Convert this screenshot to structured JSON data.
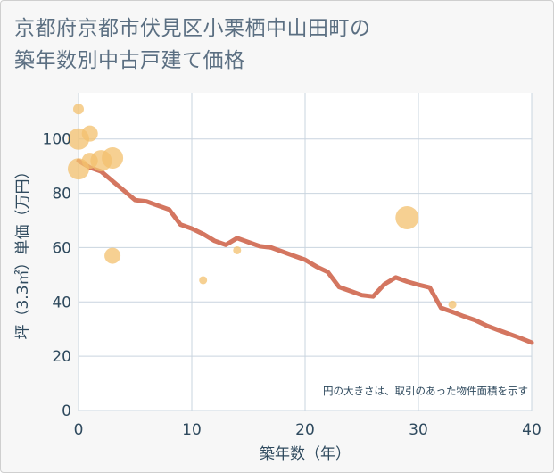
{
  "title_line1": "京都府京都市伏見区小栗栖中山田町の",
  "title_line2": "築年数別中古戸建て価格",
  "chart_data": {
    "type": "scatter",
    "title": "京都府京都市伏見区小栗栖中山田町の築年数別中古戸建て価格",
    "xlabel": "築年数（年）",
    "ylabel": "坪（3.3㎡）単価（万円）",
    "xlim": [
      0,
      40
    ],
    "ylim": [
      0,
      117
    ],
    "x_ticks": [
      0,
      10,
      20,
      30,
      40
    ],
    "y_ticks": [
      0,
      20,
      40,
      60,
      80,
      100
    ],
    "grid": true,
    "annotation": "円の大きさは、取引のあった物件面積を示す",
    "points": [
      {
        "x": 0,
        "y": 111,
        "size": 6
      },
      {
        "x": 0,
        "y": 100,
        "size": 12
      },
      {
        "x": 0,
        "y": 89,
        "size": 12
      },
      {
        "x": 1,
        "y": 102,
        "size": 9
      },
      {
        "x": 1,
        "y": 92,
        "size": 9
      },
      {
        "x": 2,
        "y": 92,
        "size": 12
      },
      {
        "x": 3,
        "y": 93,
        "size": 12
      },
      {
        "x": 3,
        "y": 57,
        "size": 9
      },
      {
        "x": 11,
        "y": 48,
        "size": 4.5
      },
      {
        "x": 14,
        "y": 59,
        "size": 4.5
      },
      {
        "x": 29,
        "y": 71,
        "size": 13
      },
      {
        "x": 33,
        "y": 39,
        "size": 4.5
      }
    ],
    "trend": {
      "name": "trend",
      "x": [
        0,
        1,
        2,
        3,
        4,
        5,
        6,
        7,
        8,
        9,
        10,
        11,
        12,
        13,
        14,
        15,
        16,
        17,
        18,
        19,
        20,
        21,
        22,
        23,
        24,
        25,
        26,
        27,
        28,
        29,
        30,
        31,
        32,
        33,
        34,
        35,
        36,
        37,
        38,
        39,
        40
      ],
      "values": [
        92,
        89.5,
        88,
        84.5,
        81,
        77.5,
        77,
        75.5,
        74,
        68.5,
        67,
        65,
        62.5,
        61,
        63.5,
        62,
        60.5,
        60,
        58.5,
        57,
        55.5,
        53,
        51,
        45.5,
        44,
        42.5,
        42,
        46.5,
        49,
        47.5,
        46.3,
        45.3,
        37.8,
        36.3,
        34.7,
        33.3,
        31.3,
        29.7,
        28.2,
        26.7,
        25
      ]
    },
    "colors": {
      "bubble": "#f3c06d",
      "trend": "#d47660",
      "grid": "#c9d4df"
    }
  }
}
